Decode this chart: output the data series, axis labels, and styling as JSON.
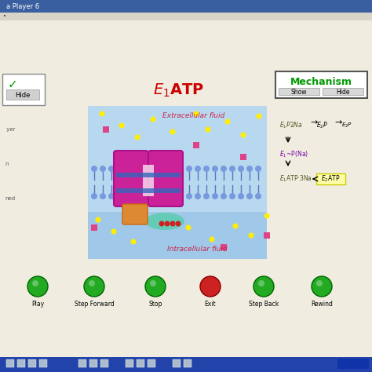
{
  "title_bar_color": "#3a5fa0",
  "title_bar_text": "a Player 6",
  "bg_color": "#e8e4d8",
  "window_bg": "#f0ede0",
  "main_label_color": "#cc0000",
  "mechanism_label": "Mechanism",
  "mechanism_color": "#009900",
  "cell_bg_top": "#b8d8f0",
  "cell_bg_bottom": "#a0c8e8",
  "extracellular_text": "Extracellular fluid",
  "intracellular_text": "Intracellular fluid",
  "pump_magenta": "#cc2299",
  "pump_dark_magenta": "#aa1188",
  "taskbar_color": "#2244aa",
  "button_green": "#22aa22",
  "button_red": "#cc2222",
  "show_hide_bg": "#ffffff",
  "left_box_bg": "#ffffff",
  "yellow_dot_color": "#ffee00",
  "pink_square_color": "#dd4488",
  "atp_highlight": "#ffffaa"
}
